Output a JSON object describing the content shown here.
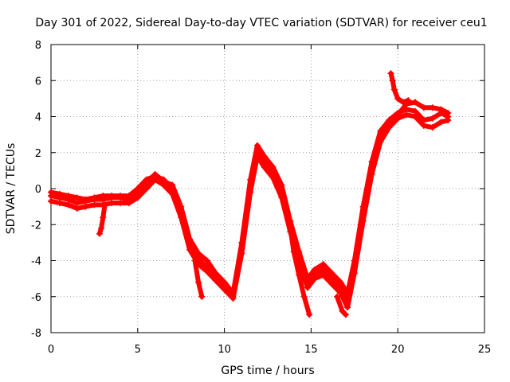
{
  "chart_data": {
    "type": "scatter",
    "title": "Day 301 of 2022, Sidereal Day-to-day VTEC variation (SDTVAR) for receiver ceu1",
    "xlabel": "GPS time / hours",
    "ylabel": "SDTVAR / TECUs",
    "xlim": [
      0,
      25
    ],
    "ylim": [
      -8,
      8
    ],
    "xticks": [
      "0",
      "5",
      "10",
      "15",
      "20",
      "25"
    ],
    "yticks": [
      "-8",
      "-6",
      "-4",
      "-2",
      "0",
      "2",
      "4",
      "6",
      "8"
    ],
    "grid": true,
    "marker": "plus",
    "color": "#ff0000",
    "series": [
      {
        "x": [
          0,
          0.5,
          1,
          1.5,
          2,
          2.5,
          3,
          3.5,
          4,
          4.5,
          5,
          5.5,
          6,
          6.5,
          7,
          7.5,
          8,
          8.5,
          9,
          9.5,
          10,
          10.5,
          11,
          11.5,
          11.9,
          12.3,
          12.8,
          13.3,
          13.8,
          14.3,
          14.8,
          15.2,
          15.7,
          16.2,
          16.7,
          17.1,
          17.5,
          18,
          18.5,
          19,
          19.5,
          20,
          20.5,
          21,
          21.5,
          22,
          22.5,
          22.9
        ],
        "y": [
          -0.4,
          -0.5,
          -0.6,
          -0.8,
          -0.7,
          -0.6,
          -0.6,
          -0.5,
          -0.5,
          -0.6,
          -0.2,
          0.3,
          0.8,
          0.4,
          0.2,
          -1.0,
          -2.8,
          -3.6,
          -4.0,
          -4.7,
          -5.2,
          -5.8,
          -3.0,
          0.5,
          2.4,
          1.8,
          1.2,
          0.2,
          -1.8,
          -3.5,
          -5.0,
          -4.5,
          -4.2,
          -4.7,
          -5.2,
          -5.8,
          -4.0,
          -1.0,
          1.5,
          3.2,
          3.8,
          4.2,
          4.4,
          4.3,
          3.8,
          3.9,
          4.2,
          4.0
        ]
      },
      {
        "x": [
          0,
          0.5,
          1,
          1.5,
          2,
          2.5,
          3,
          3.5,
          4,
          4.5,
          5,
          5.5,
          6,
          6.5,
          7,
          7.5,
          8,
          8.5,
          9,
          9.5,
          10,
          10.5,
          11,
          11.5,
          11.9,
          12.3,
          12.8,
          13.3,
          13.8,
          14.3,
          14.8,
          15.2,
          15.7,
          16.2,
          16.7,
          17.1,
          17.5,
          18,
          18.5,
          19,
          19.5,
          20,
          20.5,
          21,
          21.5,
          22,
          22.5,
          22.9
        ],
        "y": [
          -0.7,
          -0.8,
          -0.9,
          -1.1,
          -1.0,
          -0.9,
          -0.9,
          -0.8,
          -0.8,
          -0.8,
          -0.5,
          0.0,
          0.5,
          0.2,
          -0.3,
          -1.6,
          -3.4,
          -4.2,
          -4.6,
          -5.1,
          -5.6,
          -6.1,
          -3.6,
          -0.2,
          1.8,
          1.2,
          0.6,
          -0.5,
          -2.4,
          -4.1,
          -5.5,
          -5.0,
          -4.8,
          -5.3,
          -5.8,
          -6.6,
          -4.7,
          -1.8,
          0.8,
          2.6,
          3.4,
          3.9,
          4.1,
          4.0,
          3.5,
          3.4,
          3.7,
          3.8
        ]
      },
      {
        "x": [
          0,
          0.5,
          1,
          1.5,
          2,
          2.5,
          3,
          3.5,
          4,
          4.5,
          5,
          5.5,
          6,
          6.5,
          7,
          7.5,
          8,
          8.5,
          9,
          9.5,
          10,
          10.5,
          11,
          11.5,
          11.9,
          12.3,
          12.8,
          13.3,
          13.8,
          14.3,
          14.8,
          15.2,
          15.7,
          16.2,
          16.7,
          17.1,
          17.5,
          18,
          18.5,
          19,
          19.5,
          20,
          20.5,
          21,
          21.5,
          22,
          22.5,
          22.9
        ],
        "y": [
          -0.2,
          -0.3,
          -0.4,
          -0.5,
          -0.6,
          -0.5,
          -0.4,
          -0.4,
          -0.4,
          -0.4,
          0.0,
          0.5,
          0.7,
          0.5,
          0.0,
          -1.2,
          -3.1,
          -3.9,
          -4.4,
          -4.9,
          -5.4,
          -5.9,
          -3.3,
          0.1,
          2.1,
          1.5,
          0.9,
          -0.1,
          -2.1,
          -3.8,
          -5.2,
          -4.8,
          -4.5,
          -5.0,
          -5.5,
          -6.2,
          -4.3,
          -1.4,
          1.2,
          2.9,
          3.6,
          4.1,
          4.7,
          4.8,
          4.5,
          4.5,
          4.4,
          4.2
        ]
      },
      {
        "x": [
          2.8,
          2.9,
          3.0,
          3.1
        ],
        "y": [
          -2.5,
          -2.2,
          -1.6,
          -0.9
        ]
      },
      {
        "x": [
          8.3,
          8.5,
          8.7
        ],
        "y": [
          -4.0,
          -5.2,
          -6.0
        ]
      },
      {
        "x": [
          13.8,
          14.0,
          14.3,
          14.6,
          14.9
        ],
        "y": [
          -2.2,
          -3.5,
          -4.8,
          -6.0,
          -7.0
        ]
      },
      {
        "x": [
          16.5,
          16.8,
          17.0
        ],
        "y": [
          -6.0,
          -6.8,
          -7.0
        ]
      },
      {
        "x": [
          19.6,
          19.7,
          19.8,
          20.0,
          20.3,
          20.6
        ],
        "y": [
          6.4,
          6.0,
          5.5,
          5.0,
          4.8,
          4.9
        ]
      }
    ]
  }
}
